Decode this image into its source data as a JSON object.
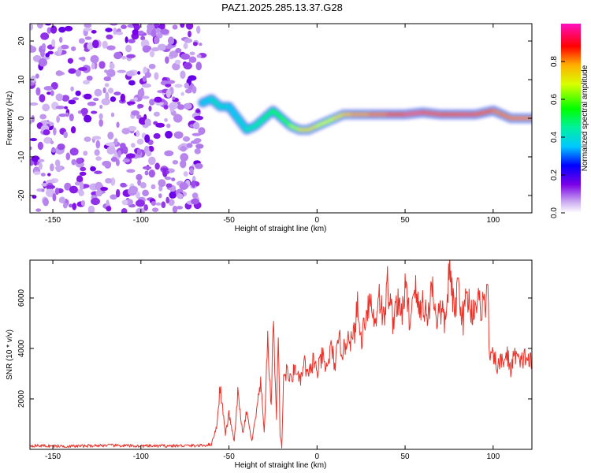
{
  "chart_data": [
    {
      "type": "heatmap",
      "title": "PAZ1.2025.285.13.37.G28",
      "xlabel": "Height of straight line (km)",
      "ylabel": "Frequency (Hz)",
      "xlim": [
        -163,
        122
      ],
      "ylim": [
        -24.5,
        24.5
      ],
      "xticks": [
        -150,
        -100,
        -50,
        0,
        50,
        100
      ],
      "yticks": [
        -20,
        -10,
        0,
        10,
        20
      ],
      "colorbar": {
        "label": "Normalized spectral amplitude",
        "range": [
          0.0,
          1.0
        ],
        "ticks": [
          0.0,
          0.2,
          0.4,
          0.6,
          0.8
        ]
      },
      "noise_region_x": [
        -163,
        -65
      ],
      "ridge": {
        "x": [
          -65,
          -60,
          -55,
          -50,
          -45,
          -40,
          -35,
          -30,
          -25,
          -20,
          -15,
          -10,
          -5,
          0,
          5,
          10,
          15,
          20,
          30,
          40,
          50,
          60,
          70,
          80,
          90,
          100,
          110,
          122
        ],
        "freq": [
          4,
          5,
          3,
          3,
          0,
          -3,
          -2,
          0,
          2,
          0,
          -2,
          -3,
          -3,
          -2,
          -1,
          0,
          1,
          1,
          1,
          1,
          1,
          1.5,
          1,
          1,
          1,
          2,
          0,
          0
        ],
        "amplitude": [
          0.3,
          0.4,
          0.4,
          0.35,
          0.35,
          0.4,
          0.45,
          0.45,
          0.5,
          0.55,
          0.6,
          0.7,
          0.75,
          0.7,
          0.65,
          0.7,
          0.75,
          0.8,
          0.8,
          0.85,
          0.95,
          0.95,
          0.9,
          0.9,
          0.95,
          0.8,
          0.85,
          0.8
        ]
      }
    },
    {
      "type": "line",
      "title": "",
      "xlabel": "Height of straight line (km)",
      "ylabel": "SNR (10 * v/v)",
      "xlim": [
        -163,
        122
      ],
      "ylim": [
        0,
        7500
      ],
      "xticks": [
        -150,
        -100,
        -50,
        0,
        50,
        100
      ],
      "yticks": [
        2000,
        4000,
        6000
      ],
      "series": [
        {
          "name": "SNR",
          "color": "#e8332a",
          "x": [
            -163,
            -140,
            -120,
            -100,
            -80,
            -65,
            -60,
            -57,
            -55,
            -52,
            -50,
            -47,
            -45,
            -42,
            -40,
            -37,
            -35,
            -32,
            -30,
            -28,
            -26,
            -25,
            -23,
            -22,
            -21,
            -20,
            -19,
            -17,
            -15,
            -12,
            -10,
            -7,
            -5,
            -2,
            0,
            3,
            5,
            8,
            10,
            13,
            15,
            18,
            20,
            23,
            25,
            28,
            30,
            33,
            35,
            38,
            40,
            43,
            45,
            48,
            50,
            53,
            55,
            58,
            60,
            63,
            65,
            68,
            70,
            73,
            75,
            78,
            80,
            83,
            85,
            88,
            90,
            93,
            96,
            97,
            98,
            100,
            103,
            105,
            108,
            110,
            113,
            115,
            118,
            122
          ],
          "y": [
            150,
            120,
            160,
            130,
            140,
            150,
            200,
            900,
            2500,
            600,
            1400,
            300,
            2200,
            600,
            1500,
            300,
            1200,
            2600,
            700,
            4300,
            1600,
            5300,
            1200,
            4900,
            600,
            100,
            2900,
            3100,
            2700,
            3300,
            2600,
            3400,
            2800,
            3600,
            3000,
            3700,
            3100,
            4000,
            3400,
            4300,
            3800,
            4700,
            4100,
            5600,
            4300,
            5500,
            6000,
            4900,
            6300,
            5000,
            6600,
            5100,
            5900,
            5300,
            6400,
            5000,
            6700,
            5400,
            5900,
            5100,
            6600,
            5200,
            5500,
            5000,
            7200,
            5300,
            6600,
            5100,
            6200,
            5400,
            5900,
            5700,
            5900,
            6100,
            3700,
            3600,
            3300,
            3500,
            3700,
            3200,
            3900,
            3300,
            3700,
            3400
          ]
        }
      ]
    }
  ]
}
